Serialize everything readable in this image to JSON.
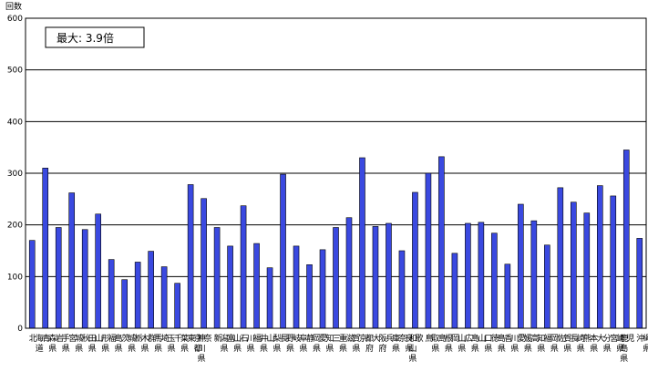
{
  "chart_data": {
    "type": "bar",
    "ylabel": "回数",
    "ylim": [
      0,
      600
    ],
    "yticks": [
      0,
      100,
      200,
      300,
      400,
      500,
      600
    ],
    "grid": true,
    "annotation": "最大: 3.9倍",
    "bar_color": "#3a49e0",
    "categories": [
      "北海道",
      "青森県",
      "岩手県",
      "宮城県",
      "秋田県",
      "山形県",
      "福島県",
      "茨城県",
      "栃木県",
      "群馬県",
      "埼玉県",
      "千葉県",
      "東京都",
      "神奈川県",
      "新潟県",
      "富山県",
      "石川県",
      "福井県",
      "山梨県",
      "長野県",
      "岐阜県",
      "静岡県",
      "愛知県",
      "三重県",
      "滋賀県",
      "京都府",
      "大阪府",
      "兵庫県",
      "奈良県",
      "和歌山県",
      "鳥取県",
      "島根県",
      "岡山県",
      "広島県",
      "山口県",
      "徳島県",
      "香川県",
      "愛媛県",
      "高知県",
      "福岡県",
      "佐賀県",
      "長崎県",
      "熊本県",
      "大分県",
      "宮崎県",
      "鹿児島県",
      "沖縄県"
    ],
    "values": [
      170,
      310,
      195,
      262,
      191,
      221,
      133,
      94,
      128,
      149,
      119,
      87,
      278,
      251,
      195,
      159,
      237,
      164,
      117,
      298,
      159,
      123,
      152,
      195,
      214,
      330,
      197,
      203,
      150,
      263,
      300,
      332,
      145,
      203,
      205,
      184,
      124,
      240,
      208,
      161,
      272,
      244,
      223,
      276,
      256,
      345,
      174
    ]
  }
}
